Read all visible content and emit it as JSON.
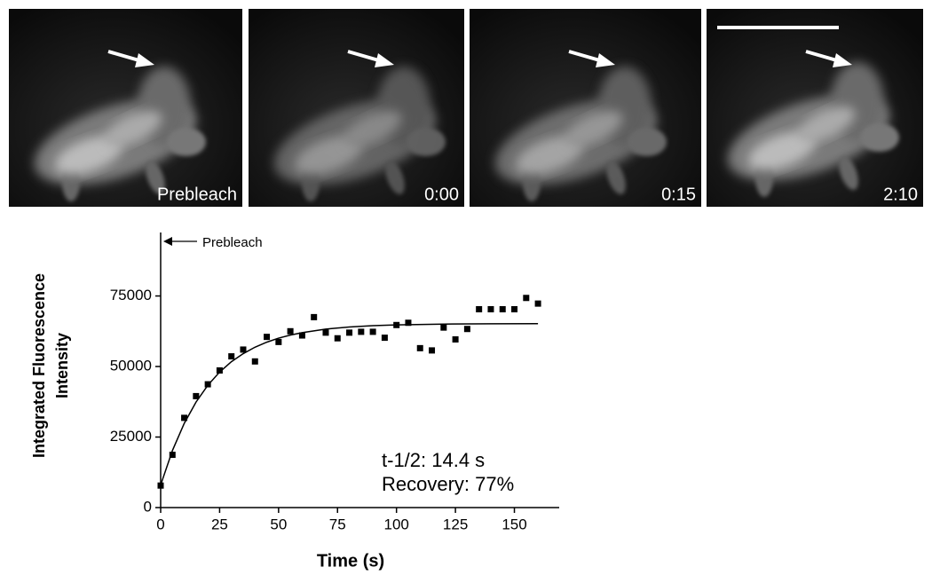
{
  "panels": [
    {
      "label": "Prebleach"
    },
    {
      "label": "0:00"
    },
    {
      "label": "0:15"
    },
    {
      "label": "2:10"
    }
  ],
  "chart_data": {
    "type": "scatter",
    "xlabel": "Time (s)",
    "ylabel": [
      "Integrated Fluorescence",
      "Intensity"
    ],
    "annotations": [
      "Prebleach",
      "t-1/2:  14.4 s",
      "Recovery: 77%"
    ],
    "xlim": [
      0,
      169
    ],
    "ylim": [
      0,
      97500
    ],
    "xticks": [
      0,
      25,
      50,
      75,
      100,
      125,
      150
    ],
    "yticks": [
      0,
      25000,
      50000,
      75000
    ],
    "series": [
      {
        "type": "scatter",
        "color": "#000000",
        "x": [
          0,
          5,
          10,
          15,
          20,
          25,
          30,
          35,
          40,
          45,
          50,
          55,
          60,
          65,
          70,
          75,
          80,
          85,
          90,
          95,
          100,
          105,
          110,
          115,
          120,
          125,
          130,
          135,
          140,
          145,
          150,
          155,
          160
        ],
        "values": [
          7800,
          18700,
          31800,
          39500,
          43700,
          48600,
          53600,
          56000,
          51800,
          60500,
          58700,
          62500,
          61000,
          67500,
          62000,
          60000,
          62000,
          62300,
          62300,
          60200,
          64700,
          65500,
          56500,
          55700,
          63800,
          59600,
          63300,
          70300,
          70300,
          70300,
          70300,
          74300,
          72300
        ]
      },
      {
        "type": "line",
        "color": "#000000",
        "x": [
          0,
          5,
          10,
          15,
          20,
          25,
          30,
          35,
          40,
          45,
          50,
          55,
          60,
          70,
          80,
          90,
          100,
          120,
          140,
          160
        ],
        "values": [
          8000,
          20240,
          29850,
          37400,
          43350,
          48040,
          51700,
          54560,
          56850,
          58620,
          60050,
          61140,
          62000,
          63250,
          64000,
          64460,
          64740,
          65030,
          65140,
          65170
        ]
      }
    ]
  }
}
